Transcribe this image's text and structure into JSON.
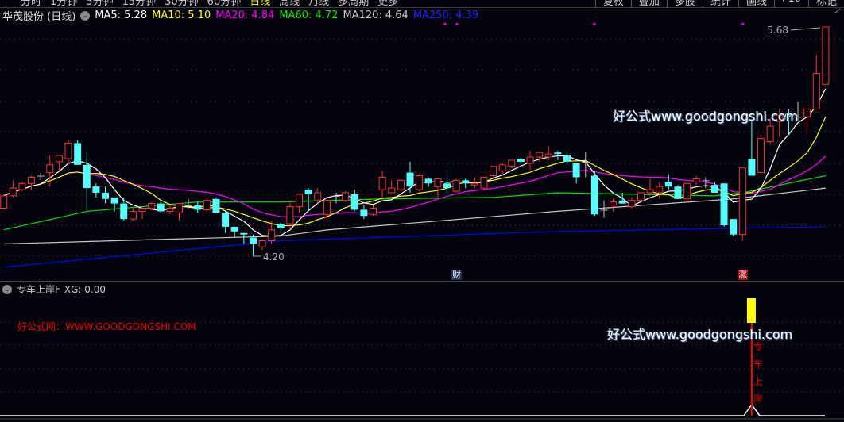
{
  "topbar": {
    "tabs": [
      "分时",
      "1分钟",
      "5分钟",
      "15分钟",
      "30分钟",
      "60分钟",
      "日线",
      "周线",
      "月线",
      "多周期",
      "更多"
    ],
    "active_tab": "日线",
    "buttons": [
      "复权",
      "叠加",
      "多股",
      "统计",
      "画线",
      "F10",
      "标记"
    ]
  },
  "legend": {
    "stock": "华茂股份 (日线)",
    "ma": [
      {
        "label": "MA5: 5.28",
        "color": "#ffffff"
      },
      {
        "label": "MA10: 5.10",
        "color": "#ffff00"
      },
      {
        "label": "MA20: 4.84",
        "color": "#ff00ff"
      },
      {
        "label": "MA60: 4.72",
        "color": "#00e000"
      },
      {
        "label": "MA120: 4.64",
        "color": "#c8c8c8"
      },
      {
        "label": "MA250: 4.39",
        "color": "#0000ff"
      }
    ]
  },
  "annotations": {
    "high": "5.68",
    "low": "4.20"
  },
  "events": [
    {
      "label": "财",
      "bar": 49
    },
    {
      "label": "涨",
      "bar": 80
    }
  ],
  "watermarks": {
    "main": "好公式www.goodgongshi.com",
    "indicator": "好公式www.goodgongshi.com",
    "red": "好公式网：WWW.GOODGONGSHI.COM"
  },
  "indicator": {
    "name": "专车上岸F",
    "value": "XG: 0.00",
    "signal_text": "专车上岸",
    "signal_bar": 81
  },
  "colors": {
    "up": "#ff3232",
    "down": "#54ffff",
    "doji": "#c0c0c0",
    "ma5": "#ffffff",
    "ma10": "#ffff00",
    "ma20": "#ff00ff",
    "ma60": "#00e000",
    "ma120": "#c8c8c8",
    "ma250": "#0000ff",
    "signal": "#ffff00"
  },
  "chart_data": {
    "type": "candlestick",
    "ylim": [
      4.2,
      5.68
    ],
    "ohlc": [
      [
        4.51,
        4.6,
        4.5,
        4.59
      ],
      [
        4.59,
        4.69,
        4.58,
        4.64
      ],
      [
        4.63,
        4.68,
        4.62,
        4.67
      ],
      [
        4.67,
        4.72,
        4.63,
        4.71
      ],
      [
        4.72,
        4.74,
        4.69,
        4.72
      ],
      [
        4.74,
        4.85,
        4.65,
        4.79
      ],
      [
        4.81,
        4.85,
        4.75,
        4.85
      ],
      [
        4.83,
        4.95,
        4.79,
        4.93
      ],
      [
        4.93,
        4.95,
        4.79,
        4.79
      ],
      [
        4.79,
        4.87,
        4.5,
        4.64
      ],
      [
        4.65,
        4.67,
        4.58,
        4.61
      ],
      [
        4.61,
        4.65,
        4.54,
        4.57
      ],
      [
        4.58,
        4.58,
        4.49,
        4.54
      ],
      [
        4.54,
        4.58,
        4.43,
        4.44
      ],
      [
        4.44,
        4.51,
        4.43,
        4.49
      ],
      [
        4.49,
        4.52,
        4.44,
        4.51
      ],
      [
        4.51,
        4.55,
        4.5,
        4.54
      ],
      [
        4.54,
        4.55,
        4.48,
        4.49
      ],
      [
        4.49,
        4.53,
        4.47,
        4.51
      ],
      [
        4.48,
        4.54,
        4.43,
        4.54
      ],
      [
        4.53,
        4.57,
        4.51,
        4.53
      ],
      [
        4.53,
        4.55,
        4.48,
        4.5
      ],
      [
        4.5,
        4.57,
        4.49,
        4.56
      ],
      [
        4.57,
        4.58,
        4.48,
        4.48
      ],
      [
        4.48,
        4.49,
        4.35,
        4.39
      ],
      [
        4.39,
        4.39,
        4.32,
        4.36
      ],
      [
        4.35,
        4.35,
        4.28,
        4.34
      ],
      [
        4.32,
        4.34,
        4.2,
        4.28
      ],
      [
        4.26,
        4.31,
        4.24,
        4.3
      ],
      [
        4.3,
        4.43,
        4.28,
        4.37
      ],
      [
        4.41,
        4.42,
        4.35,
        4.38
      ],
      [
        4.41,
        4.56,
        4.38,
        4.52
      ],
      [
        4.52,
        4.6,
        4.48,
        4.6
      ],
      [
        4.63,
        4.64,
        4.49,
        4.6
      ],
      [
        4.56,
        4.64,
        4.53,
        4.61
      ],
      [
        4.47,
        4.56,
        4.44,
        4.56
      ],
      [
        4.59,
        4.61,
        4.54,
        4.59
      ],
      [
        4.56,
        4.62,
        4.55,
        4.61
      ],
      [
        4.6,
        4.63,
        4.49,
        4.5
      ],
      [
        4.5,
        4.53,
        4.44,
        4.46
      ],
      [
        4.47,
        4.53,
        4.46,
        4.51
      ],
      [
        4.63,
        4.75,
        4.58,
        4.71
      ],
      [
        4.61,
        4.69,
        4.61,
        4.64
      ],
      [
        4.63,
        4.7,
        4.62,
        4.69
      ],
      [
        4.74,
        4.81,
        4.61,
        4.65
      ],
      [
        4.63,
        4.73,
        4.62,
        4.72
      ],
      [
        4.7,
        4.71,
        4.65,
        4.67
      ],
      [
        4.65,
        4.7,
        4.58,
        4.7
      ],
      [
        4.67,
        4.75,
        4.61,
        4.64
      ],
      [
        4.62,
        4.7,
        4.61,
        4.69
      ],
      [
        4.69,
        4.7,
        4.64,
        4.67
      ],
      [
        4.66,
        4.71,
        4.64,
        4.67
      ],
      [
        4.64,
        4.71,
        4.63,
        4.71
      ],
      [
        4.72,
        4.78,
        4.71,
        4.78
      ],
      [
        4.75,
        4.8,
        4.73,
        4.79
      ],
      [
        4.78,
        4.82,
        4.77,
        4.82
      ],
      [
        4.83,
        4.84,
        4.79,
        4.81
      ],
      [
        4.8,
        4.88,
        4.76,
        4.84
      ],
      [
        4.84,
        4.87,
        4.81,
        4.87
      ],
      [
        4.84,
        4.91,
        4.82,
        4.86
      ],
      [
        4.87,
        4.88,
        4.82,
        4.86
      ],
      [
        4.85,
        4.9,
        4.77,
        4.81
      ],
      [
        4.8,
        4.8,
        4.67,
        4.71
      ],
      [
        4.81,
        4.87,
        4.71,
        4.81
      ],
      [
        4.72,
        4.75,
        4.46,
        4.47
      ],
      [
        4.5,
        4.56,
        4.45,
        4.5
      ],
      [
        4.53,
        4.57,
        4.49,
        4.55
      ],
      [
        4.56,
        4.61,
        4.54,
        4.54
      ],
      [
        4.52,
        4.58,
        4.51,
        4.56
      ],
      [
        4.56,
        4.61,
        4.55,
        4.61
      ],
      [
        4.61,
        4.7,
        4.59,
        4.63
      ],
      [
        4.61,
        4.68,
        4.57,
        4.65
      ],
      [
        4.68,
        4.73,
        4.63,
        4.65
      ],
      [
        4.65,
        4.66,
        4.57,
        4.57
      ],
      [
        4.57,
        4.67,
        4.55,
        4.67
      ],
      [
        4.68,
        4.72,
        4.66,
        4.7
      ],
      [
        4.69,
        4.71,
        4.64,
        4.69
      ],
      [
        4.66,
        4.68,
        4.61,
        4.61
      ],
      [
        4.67,
        4.67,
        4.39,
        4.4
      ],
      [
        4.44,
        4.44,
        4.33,
        4.34
      ],
      [
        4.34,
        4.77,
        4.3,
        4.77
      ],
      [
        4.83,
        5.08,
        4.72,
        4.72
      ],
      [
        4.74,
        4.99,
        4.74,
        4.96
      ],
      [
        4.94,
        5.09,
        4.92,
        5.04
      ],
      [
        5.07,
        5.15,
        4.97,
        5.11
      ],
      [
        5.12,
        5.15,
        4.99,
        5.1
      ],
      [
        5.1,
        5.2,
        5.07,
        5.1
      ],
      [
        5.1,
        5.15,
        4.99,
        5.15
      ],
      [
        5.15,
        5.5,
        5.15,
        5.38
      ],
      [
        5.31,
        5.68,
        5.31,
        5.68
      ]
    ],
    "ma_long": {
      "ma60": [
        [
          0,
          4.37
        ],
        [
          9,
          4.49
        ],
        [
          21,
          4.55
        ],
        [
          30,
          4.55
        ],
        [
          41,
          4.57
        ],
        [
          53,
          4.58
        ],
        [
          60,
          4.61
        ],
        [
          77,
          4.59
        ],
        [
          80,
          4.61
        ],
        [
          89,
          4.72
        ]
      ],
      "ma120": [
        [
          0,
          4.28
        ],
        [
          30,
          4.33
        ],
        [
          35,
          4.37
        ],
        [
          60,
          4.49
        ],
        [
          79,
          4.57
        ],
        [
          89,
          4.64
        ]
      ],
      "ma250": [
        [
          0,
          4.13
        ],
        [
          30,
          4.3
        ],
        [
          60,
          4.36
        ],
        [
          89,
          4.39
        ]
      ]
    }
  }
}
